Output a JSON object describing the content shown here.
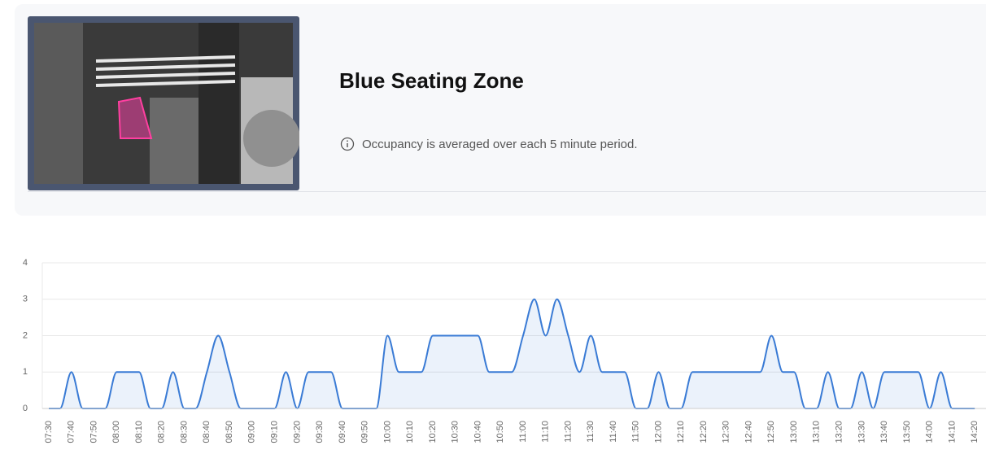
{
  "header": {
    "title": "Blue Seating Zone",
    "info": "Occupancy is averaged over each 5 minute period."
  },
  "chart_data": {
    "type": "line",
    "categories": [
      "07:30",
      null,
      "07:40",
      null,
      "07:50",
      null,
      "08:00",
      null,
      "08:10",
      null,
      "08:20",
      null,
      "08:30",
      null,
      "08:40",
      null,
      "08:50",
      null,
      "09:00",
      null,
      "09:10",
      null,
      "09:20",
      null,
      "09:30",
      null,
      "09:40",
      null,
      "09:50",
      null,
      "10:00",
      null,
      "10:10",
      null,
      "10:20",
      null,
      "10:30",
      null,
      "10:40",
      null,
      "10:50",
      null,
      "11:00",
      null,
      "11:10",
      null,
      "11:20",
      null,
      "11:30",
      null,
      "11:40",
      null,
      "11:50",
      null,
      "12:00",
      null,
      "12:10",
      null,
      "12:20",
      null,
      "12:30",
      null,
      "12:40",
      null,
      "12:50",
      null,
      "13:00",
      null,
      "13:10",
      null,
      "13:20",
      null,
      "13:30",
      null,
      "13:40",
      null,
      "13:50",
      null,
      "14:00",
      null,
      "14:10",
      null,
      "14:20"
    ],
    "series": [
      {
        "color": "#3a7bd5",
        "values": [
          0,
          0,
          1,
          0,
          0,
          0,
          1,
          1,
          1,
          0,
          0,
          1,
          0,
          0,
          1,
          2,
          1,
          0,
          0,
          0,
          0,
          1,
          0,
          1,
          1,
          1,
          0,
          0,
          0,
          0,
          2,
          1,
          1,
          1,
          2,
          2,
          2,
          2,
          2,
          1,
          1,
          1,
          2,
          3,
          2,
          3,
          2,
          1,
          2,
          1,
          1,
          1,
          0,
          0,
          1,
          0,
          0,
          1,
          1,
          1,
          1,
          1,
          1,
          1,
          2,
          1,
          1,
          0,
          0,
          1,
          0,
          0,
          1,
          0,
          1,
          1,
          1,
          1,
          0,
          1,
          0,
          0,
          0
        ]
      }
    ],
    "ylim": [
      0,
      4
    ],
    "yticks": [
      0,
      1,
      2,
      3,
      4
    ],
    "grid": true
  }
}
